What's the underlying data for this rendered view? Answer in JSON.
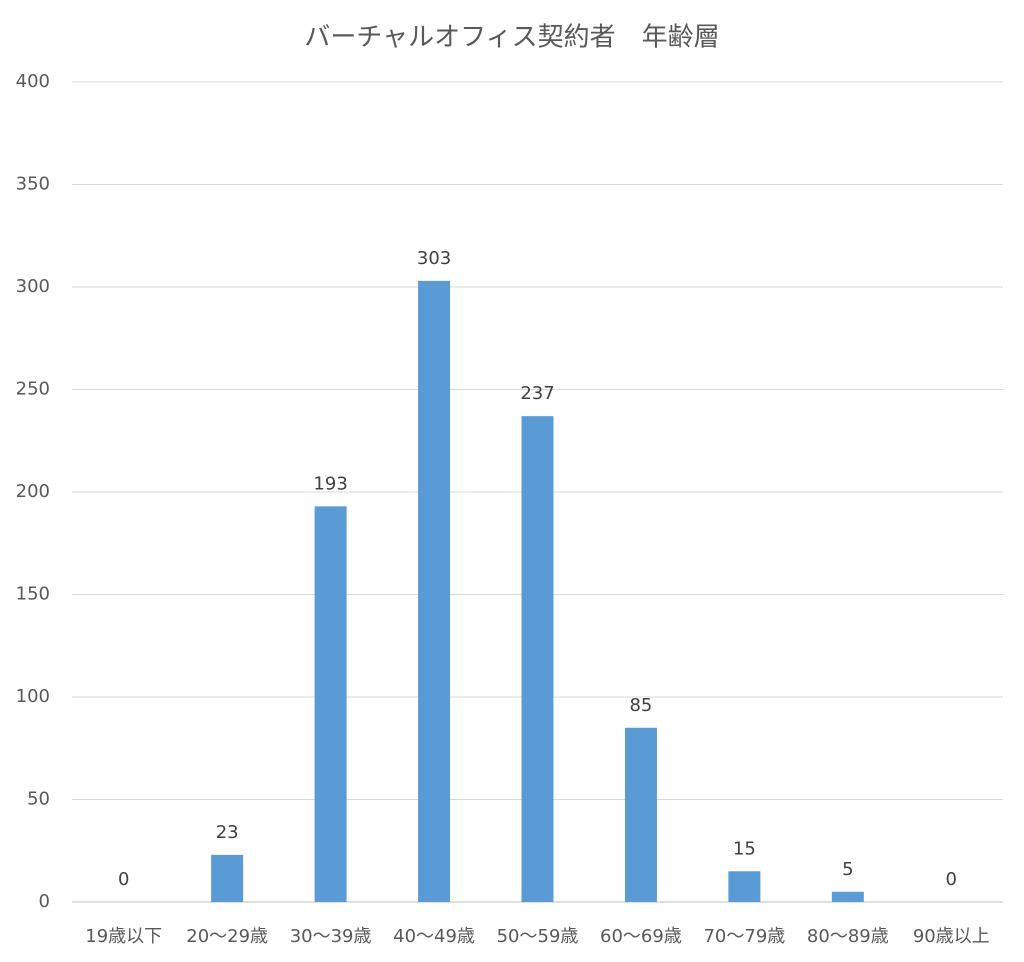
{
  "chart_data": {
    "type": "bar",
    "title": "バーチャルオフィス契約者　年齢層",
    "categories": [
      "19歳以下",
      "20〜29歳",
      "30〜39歳",
      "40〜49歳",
      "50〜59歳",
      "60〜69歳",
      "70〜79歳",
      "80〜89歳",
      "90歳以上"
    ],
    "values": [
      0,
      23,
      193,
      303,
      237,
      85,
      15,
      5,
      0
    ],
    "color": "#5b9bd5",
    "ylim": [
      0,
      400
    ],
    "yticks": [
      0,
      50,
      100,
      150,
      200,
      250,
      300,
      350,
      400
    ],
    "grid": true
  }
}
